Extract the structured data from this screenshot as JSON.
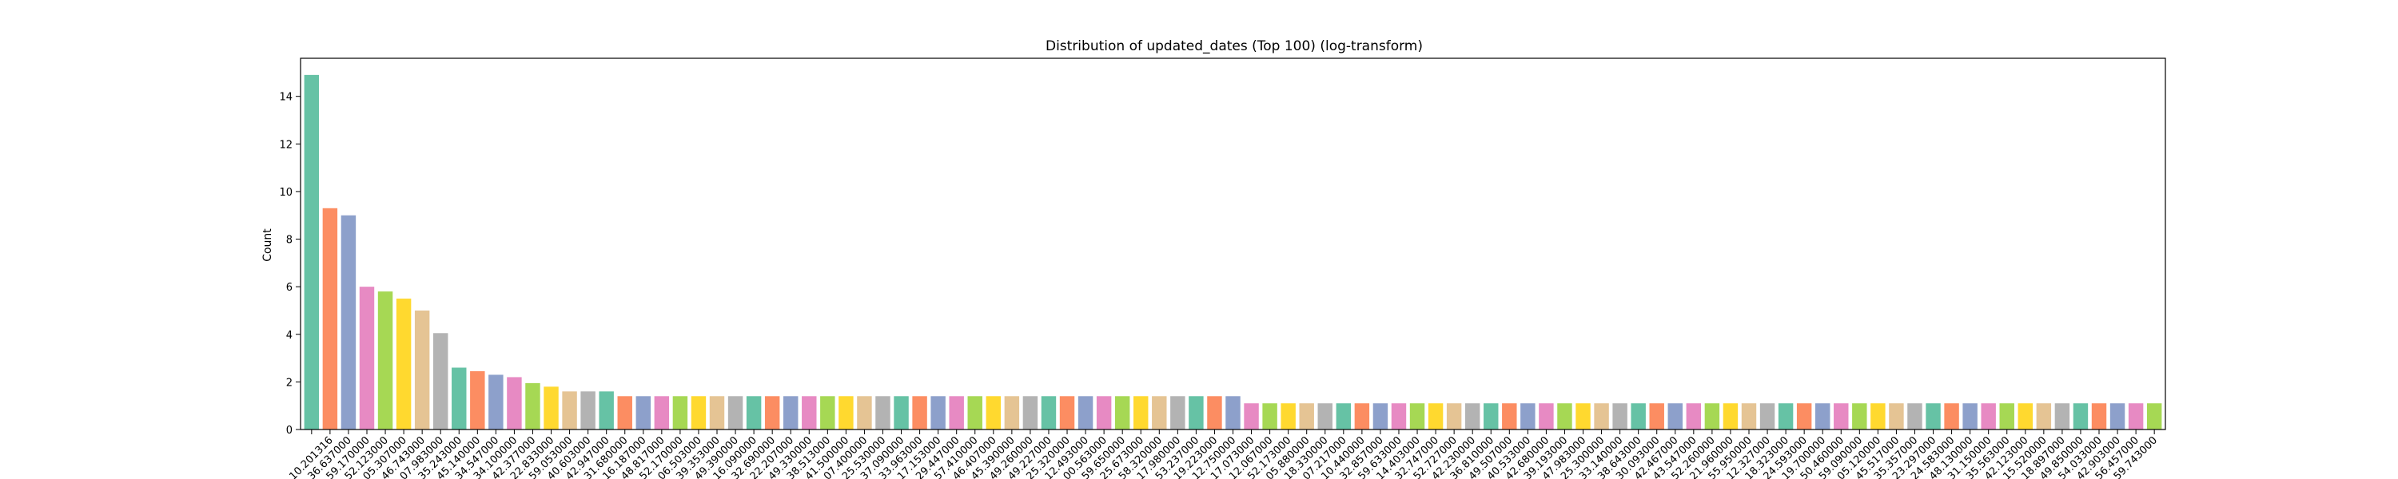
{
  "chart_data": {
    "type": "bar",
    "title": "Distribution of updated_dates (Top 100) (log-transform)",
    "xlabel": "",
    "ylabel": "Count",
    "ylim": [
      0,
      15.6
    ],
    "yticks": [
      0,
      2,
      4,
      6,
      8,
      10,
      12,
      14
    ],
    "grid": false,
    "legend": "none",
    "palette": [
      "#66c2a5",
      "#fc8d62",
      "#8da0cb",
      "#e78ac3",
      "#a6d854",
      "#ffd92f",
      "#e5c494",
      "#b3b3b3"
    ],
    "categories": [
      "",
      "10.201316",
      "36.637000",
      "59.170000",
      "52.123000",
      "05.307000",
      "46.743000",
      "07.983000",
      "35.243000",
      "45.140000",
      "34.547000",
      "34.100000",
      "42.377000",
      "22.833000",
      "59.053000",
      "40.603000",
      "42.947000",
      "31.680000",
      "16.187000",
      "48.817000",
      "52.170000",
      "06.503000",
      "39.353000",
      "49.390000",
      "16.090000",
      "32.690000",
      "22.207000",
      "49.330000",
      "38.513000",
      "41.500000",
      "07.400000",
      "25.530000",
      "37.090000",
      "33.963000",
      "17.153000",
      "29.447000",
      "57.410000",
      "46.407000",
      "45.390000",
      "49.260000",
      "49.227000",
      "25.320000",
      "12.493000",
      "00.563000",
      "59.650000",
      "25.673000",
      "58.320000",
      "17.980000",
      "53.237000",
      "19.223000",
      "12.750000",
      "17.073000",
      "12.067000",
      "52.173000",
      "05.880000",
      "18.330000",
      "07.217000",
      "10.440000",
      "32.857000",
      "59.633000",
      "14.403000",
      "32.747000",
      "52.727000",
      "42.230000",
      "36.810000",
      "49.507000",
      "40.533000",
      "42.680000",
      "39.193000",
      "47.983000",
      "25.300000",
      "33.140000",
      "38.643000",
      "30.093000",
      "42.467000",
      "43.547000",
      "52.260000",
      "21.960000",
      "55.950000",
      "12.327000",
      "18.323000",
      "24.593000",
      "19.700000",
      "50.460000",
      "59.090000",
      "05.120000",
      "45.517000",
      "35.357000",
      "23.297000",
      "24.583000",
      "48.130000",
      "31.150000",
      "35.563000",
      "42.123000",
      "15.520000",
      "18.897000",
      "49.850000",
      "54.033000",
      "42.903000",
      "56.457000",
      "59.743000"
    ],
    "values": [
      14.9,
      9.3,
      9.0,
      6.0,
      5.8,
      5.5,
      5.0,
      4.05,
      2.6,
      2.45,
      2.3,
      2.2,
      1.95,
      1.8,
      1.6,
      1.6,
      1.6,
      1.4,
      1.4,
      1.4,
      1.4,
      1.4,
      1.4,
      1.4,
      1.4,
      1.4,
      1.4,
      1.4,
      1.4,
      1.4,
      1.4,
      1.4,
      1.4,
      1.4,
      1.4,
      1.4,
      1.4,
      1.4,
      1.4,
      1.4,
      1.4,
      1.4,
      1.4,
      1.4,
      1.4,
      1.4,
      1.4,
      1.4,
      1.4,
      1.4,
      1.4,
      1.1,
      1.1,
      1.1,
      1.1,
      1.1,
      1.1,
      1.1,
      1.1,
      1.1,
      1.1,
      1.1,
      1.1,
      1.1,
      1.1,
      1.1,
      1.1,
      1.1,
      1.1,
      1.1,
      1.1,
      1.1,
      1.1,
      1.1,
      1.1,
      1.1,
      1.1,
      1.1,
      1.1,
      1.1,
      1.1,
      1.1,
      1.1,
      1.1,
      1.1,
      1.1,
      1.1,
      1.1,
      1.1,
      1.1,
      1.1,
      1.1,
      1.1,
      1.1,
      1.1,
      1.1,
      1.1,
      1.1,
      1.1,
      1.1,
      1.1
    ]
  }
}
